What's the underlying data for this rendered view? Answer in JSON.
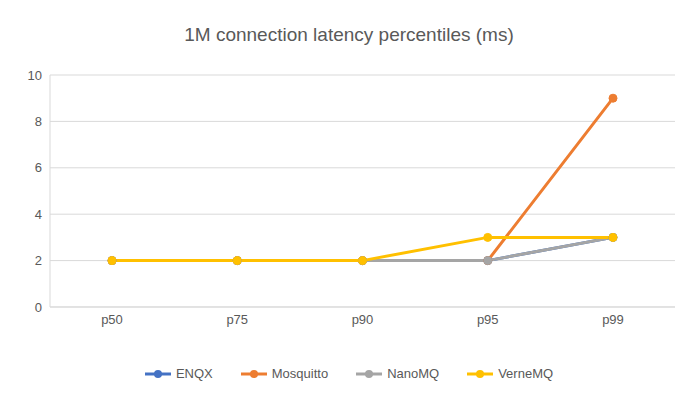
{
  "chart_data": {
    "type": "line",
    "title": "1M connection latency percentiles (ms)",
    "categories": [
      "p50",
      "p75",
      "p90",
      "p95",
      "p99"
    ],
    "series": [
      {
        "name": "ENQX",
        "color": "#4472c4",
        "values": [
          2,
          2,
          2,
          2,
          3
        ]
      },
      {
        "name": "Mosquitto",
        "color": "#ed7d31",
        "values": [
          2,
          2,
          2,
          2,
          9
        ]
      },
      {
        "name": "NanoMQ",
        "color": "#a5a5a5",
        "values": [
          2,
          2,
          2,
          2,
          3
        ]
      },
      {
        "name": "VerneMQ",
        "color": "#ffc000",
        "values": [
          2,
          2,
          2,
          3,
          3
        ]
      }
    ],
    "ylim": [
      0,
      10
    ],
    "yticks": [
      0,
      2,
      4,
      6,
      8,
      10
    ],
    "grid": true,
    "legend": "bottom",
    "marker": "circle"
  }
}
